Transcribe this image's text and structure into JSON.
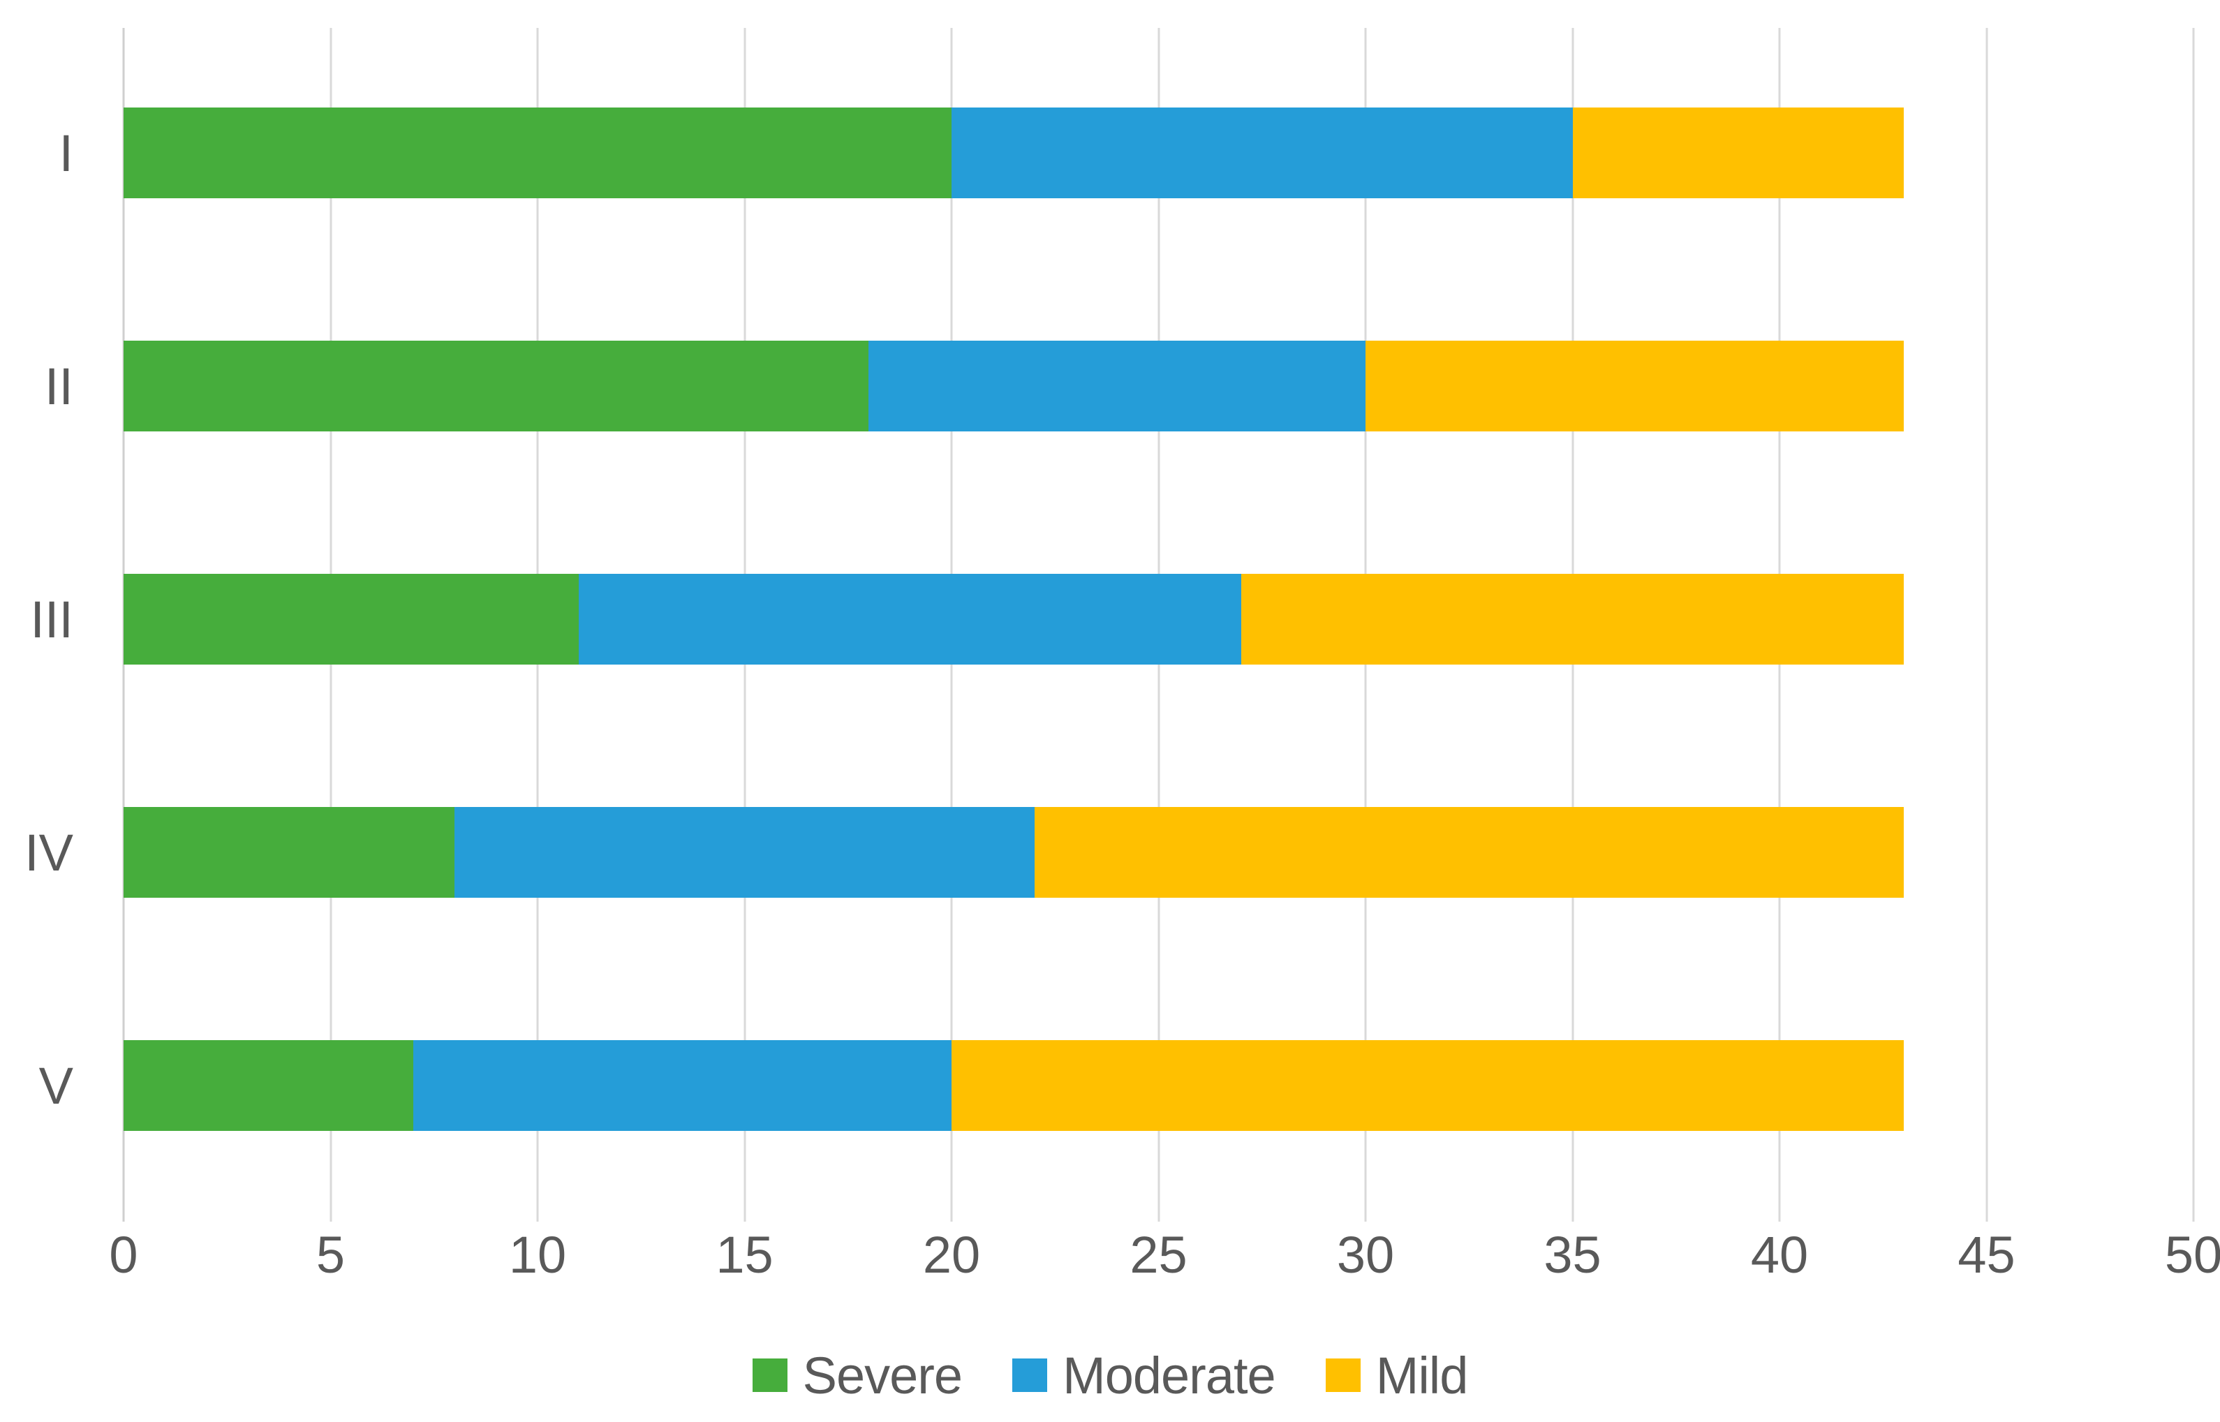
{
  "chart_data": {
    "type": "bar",
    "orientation": "horizontal",
    "stacked": true,
    "title": "",
    "xlabel": "",
    "ylabel": "",
    "categories": [
      "I",
      "II",
      "III",
      "IV",
      "V"
    ],
    "series": [
      {
        "name": "Severe",
        "color": "#46ad3c",
        "values": [
          20,
          18,
          11,
          8,
          7
        ]
      },
      {
        "name": "Moderate",
        "color": "#259dd8",
        "values": [
          15,
          12,
          16,
          14,
          13
        ]
      },
      {
        "name": "Mild",
        "color": "#ffc000",
        "values": [
          8,
          13,
          16,
          21,
          23
        ]
      }
    ],
    "totals": [
      43,
      43,
      43,
      43,
      43
    ],
    "x_ticks": [
      0,
      5,
      10,
      15,
      20,
      25,
      30,
      35,
      40,
      45,
      50
    ],
    "xlim": [
      0,
      50
    ],
    "grid": "vertical",
    "gridline_color": "#d9d9d9",
    "axis_line_color": "#cfcfcf",
    "text_color": "#595959",
    "background": "#ffffff",
    "legend_position": "bottom"
  }
}
